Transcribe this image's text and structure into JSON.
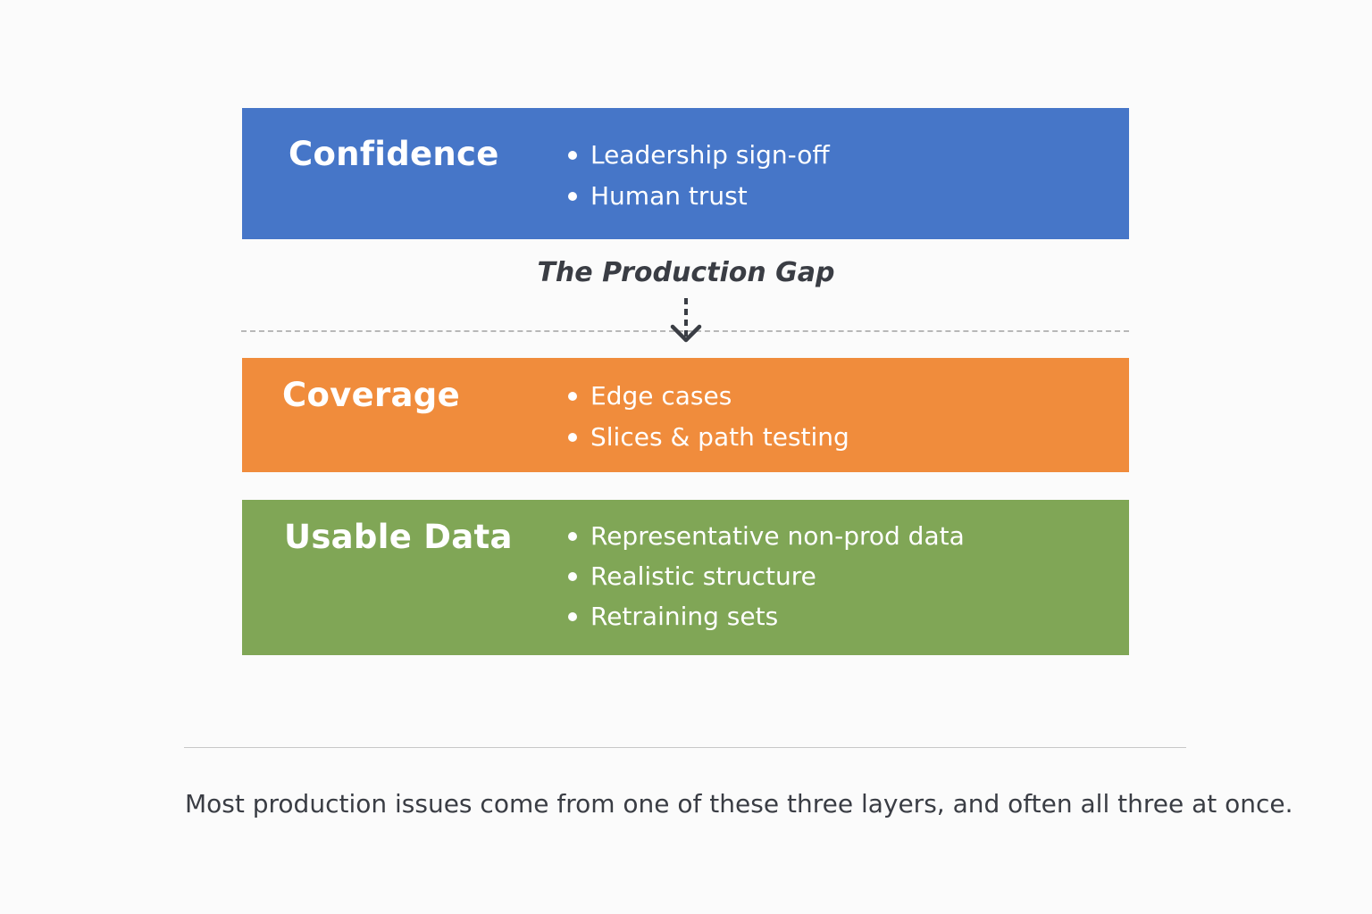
{
  "layers": [
    {
      "title": "Confidence",
      "color": "#4676c8",
      "items": [
        "Leadership sign-off",
        "Human trust"
      ]
    },
    {
      "title": "Coverage",
      "color": "#f08c3c",
      "items": [
        "Edge cases",
        "Slices & path testing"
      ]
    },
    {
      "title": "Usable Data",
      "color": "#80a656",
      "items": [
        "Representative non-prod data",
        "Realistic structure",
        "Retraining sets"
      ]
    }
  ],
  "gap_label": "The Production Gap",
  "arrow_icon": "arrow-down-icon",
  "caption": "Most production issues come from one of these three layers, and often all three at once."
}
